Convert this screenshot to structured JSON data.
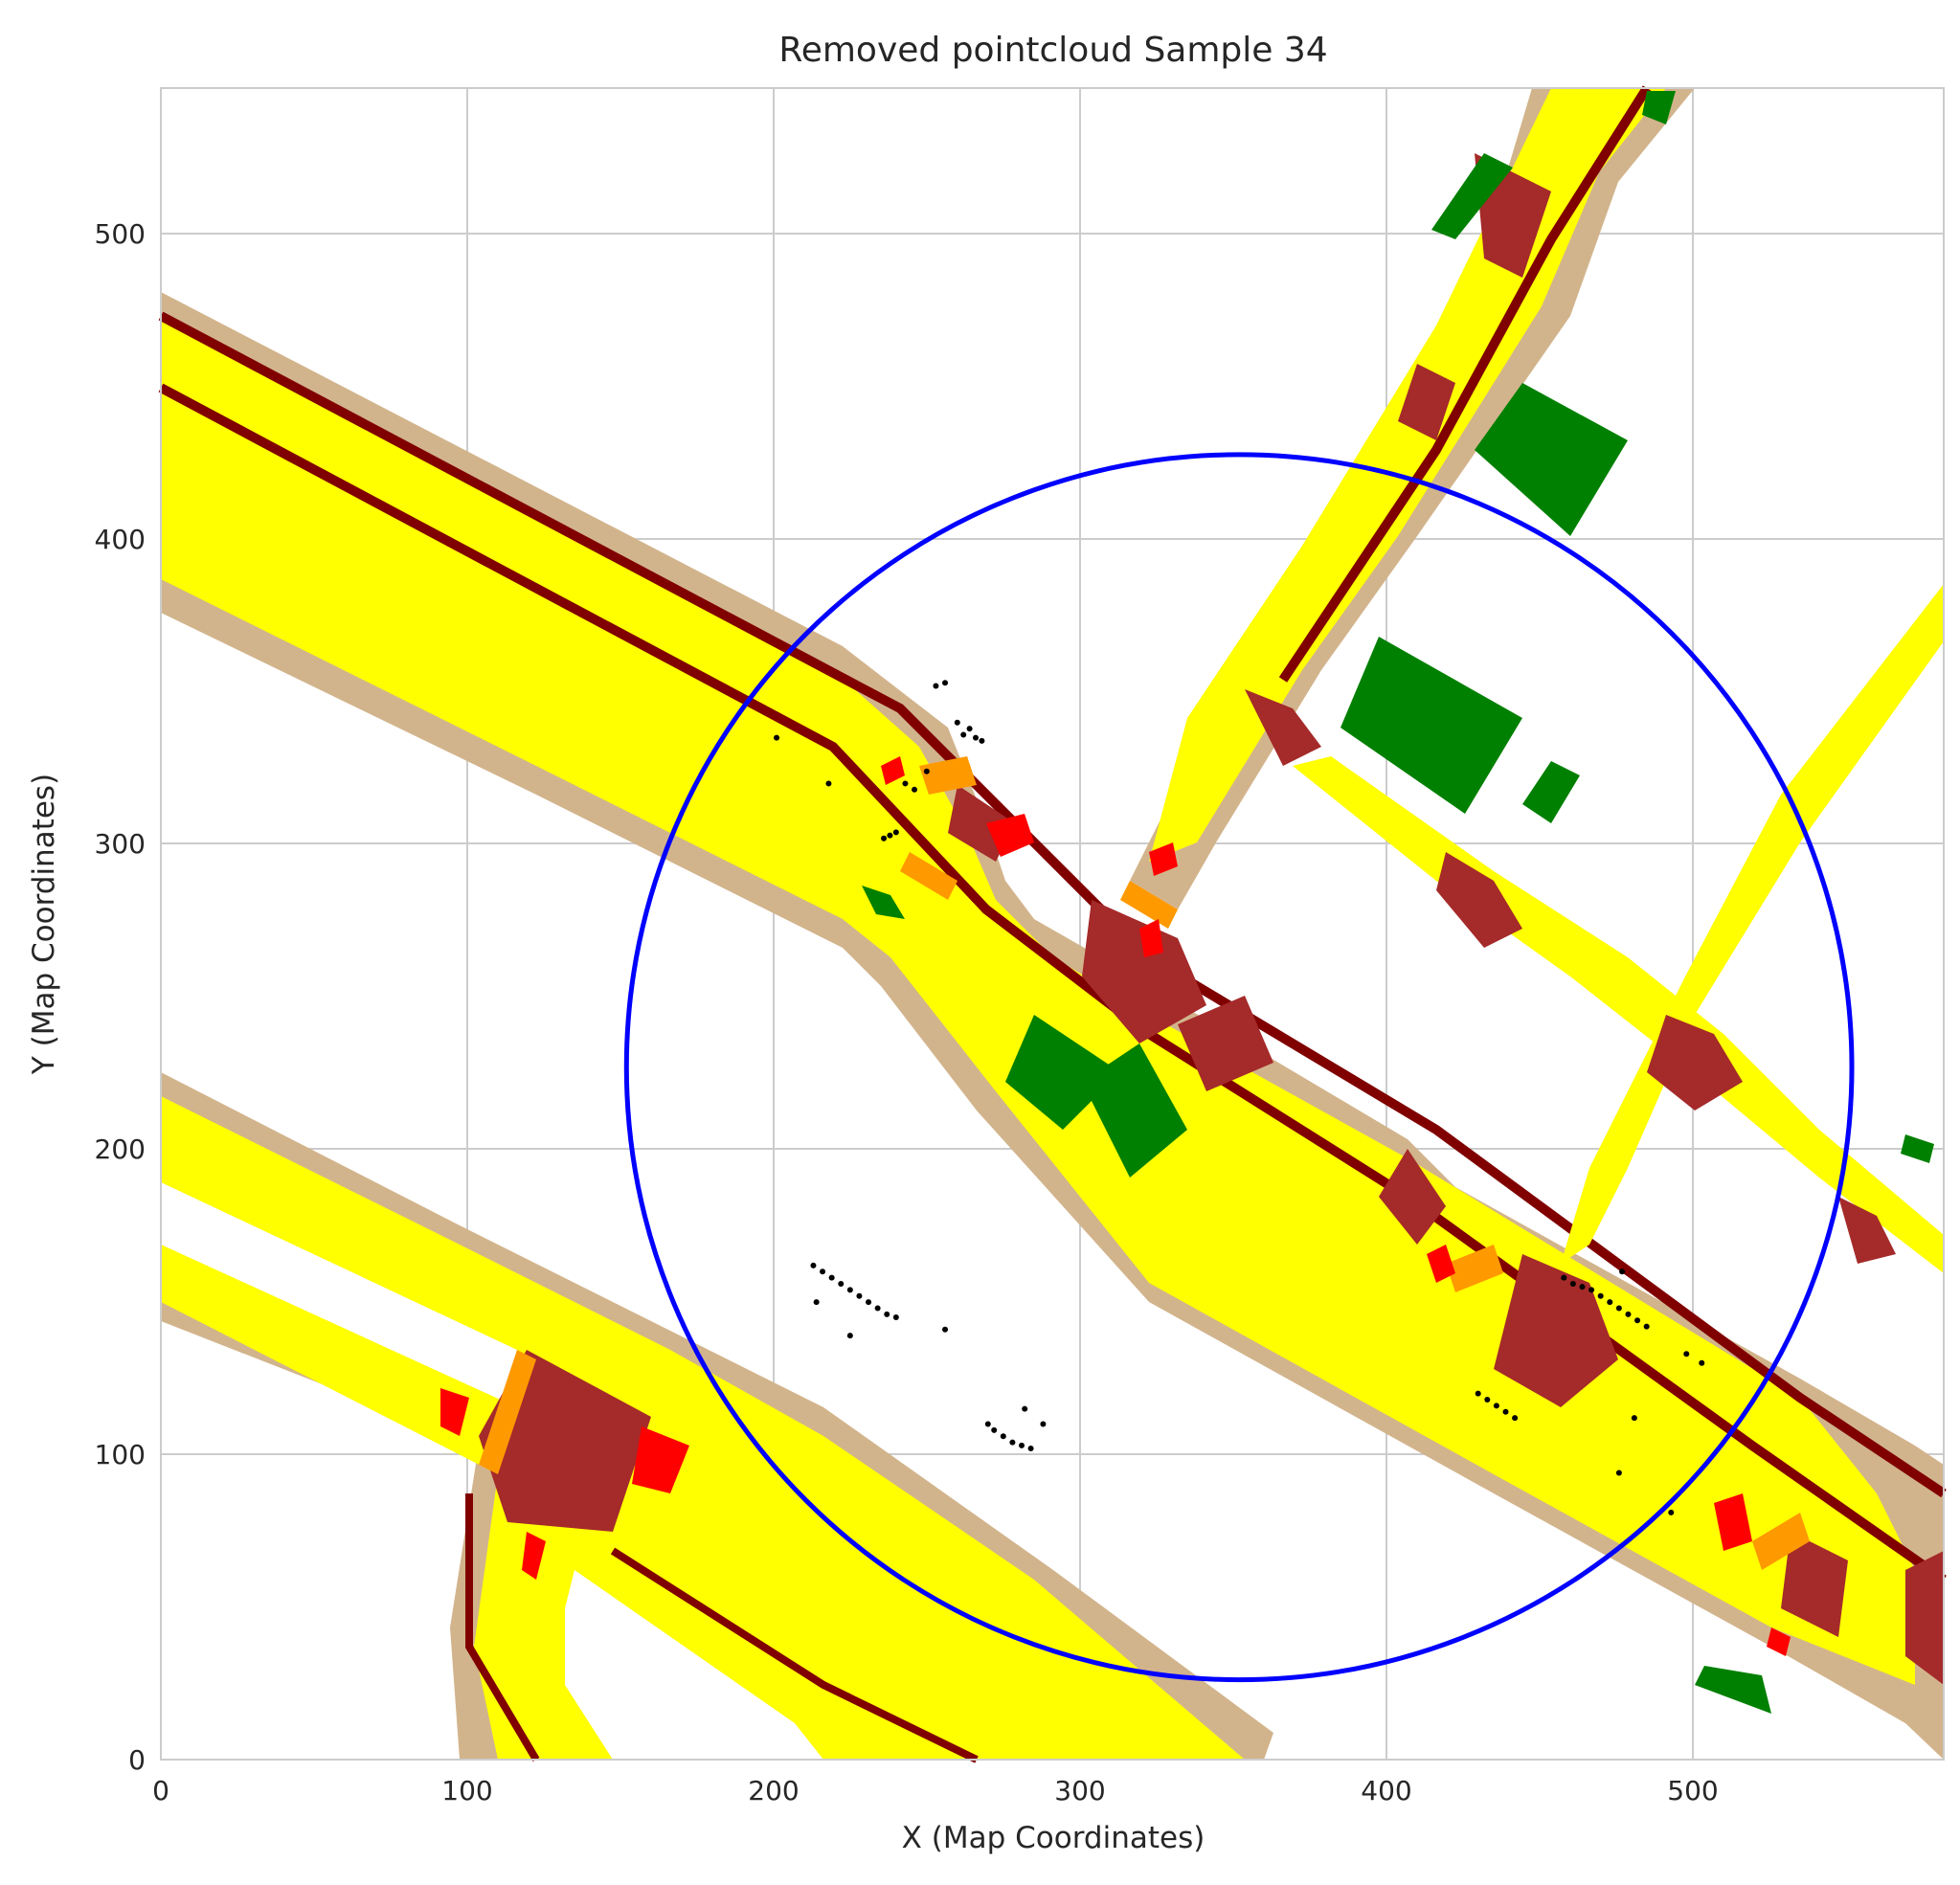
{
  "title": "Removed pointcloud Sample 34",
  "xlabel": "X (Map Coordinates)",
  "ylabel": "Y (Map Coordinates)",
  "colors": {
    "road": "#ffff00",
    "sidewalk": "#d2b48c",
    "curb": "#800000",
    "crosswalk": "#a52a2a",
    "vehicle": "#ff0000",
    "stopline": "#ff9900",
    "vegetation": "#008000",
    "points": "#000000",
    "circle": "#0000ff",
    "grid": "#cccccc"
  },
  "chart_data": {
    "type": "map",
    "xlim": [
      0,
      582
    ],
    "ylim": [
      0,
      548
    ],
    "xticks": [
      "0",
      "100",
      "200",
      "300",
      "400",
      "500"
    ],
    "yticks": [
      "0",
      "100",
      "200",
      "300",
      "400",
      "500"
    ],
    "grid": true,
    "circle": {
      "center": [
        352,
        227
      ],
      "radius": 200
    },
    "removed_points": [
      [
        213,
        162
      ],
      [
        216,
        160
      ],
      [
        219,
        158
      ],
      [
        222,
        156
      ],
      [
        225,
        154
      ],
      [
        228,
        152
      ],
      [
        231,
        150
      ],
      [
        234,
        148
      ],
      [
        237,
        146
      ],
      [
        240,
        145
      ],
      [
        214,
        150
      ],
      [
        225,
        139
      ],
      [
        256,
        141
      ],
      [
        201,
        335
      ],
      [
        218,
        320
      ],
      [
        236,
        302
      ],
      [
        238,
        303
      ],
      [
        240,
        304
      ],
      [
        243,
        320
      ],
      [
        246,
        318
      ],
      [
        250,
        324
      ],
      [
        253,
        352
      ],
      [
        256,
        353
      ],
      [
        260,
        340
      ],
      [
        262,
        336
      ],
      [
        264,
        338
      ],
      [
        266,
        335
      ],
      [
        268,
        334
      ],
      [
        270,
        110
      ],
      [
        272,
        108
      ],
      [
        275,
        106
      ],
      [
        278,
        104
      ],
      [
        281,
        103
      ],
      [
        284,
        102
      ],
      [
        288,
        110
      ],
      [
        282,
        115
      ],
      [
        430,
        120
      ],
      [
        433,
        118
      ],
      [
        436,
        116
      ],
      [
        439,
        114
      ],
      [
        442,
        112
      ],
      [
        458,
        158
      ],
      [
        461,
        156
      ],
      [
        464,
        155
      ],
      [
        467,
        154
      ],
      [
        470,
        152
      ],
      [
        473,
        150
      ],
      [
        476,
        148
      ],
      [
        479,
        146
      ],
      [
        482,
        144
      ],
      [
        477,
        160
      ],
      [
        485,
        142
      ],
      [
        498,
        133
      ],
      [
        503,
        130
      ],
      [
        476,
        94
      ],
      [
        493,
        81
      ],
      [
        481,
        112
      ]
    ]
  }
}
